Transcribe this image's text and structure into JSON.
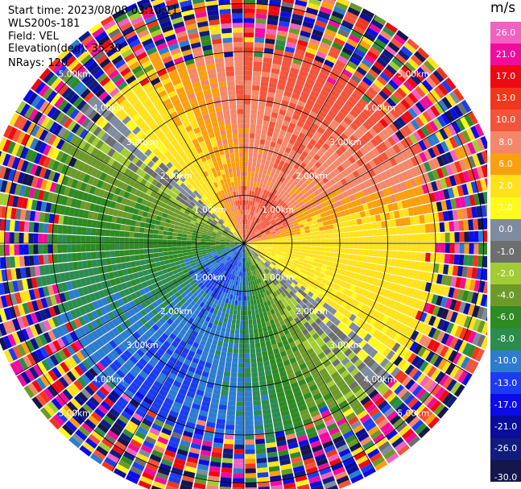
{
  "info": {
    "start_time": "Start time: 2023/08/08 03:10:11",
    "instrument": "WLS200s-181",
    "field": "Field: VEL",
    "elevation": "Elevation(deg): 35.30",
    "nrays": "NRays: 120"
  },
  "colorbar": {
    "unit": "m/s",
    "bins": [
      {
        "label": "26.0",
        "color": "#f062c2"
      },
      {
        "label": "21.0",
        "color": "#f20c9c"
      },
      {
        "label": "17.0",
        "color": "#ee0a12"
      },
      {
        "label": "13.0",
        "color": "#f2361c"
      },
      {
        "label": "10.0",
        "color": "#f4543c"
      },
      {
        "label": "8.0",
        "color": "#f4876a"
      },
      {
        "label": "6.0",
        "color": "#fa9f0e"
      },
      {
        "label": "2.0",
        "color": "#ffe21c"
      },
      {
        "label": "1.0",
        "color": "#fffa1c"
      },
      {
        "label": "0.0",
        "color": "#7f8b9e"
      },
      {
        "label": "-1.0",
        "color": "#6e6e6e"
      },
      {
        "label": "-2.0",
        "color": "#a2cc34"
      },
      {
        "label": "-4.0",
        "color": "#6c9a2a"
      },
      {
        "label": "-6.0",
        "color": "#2e8a22"
      },
      {
        "label": "-8.0",
        "color": "#2c8c50"
      },
      {
        "label": "-10.0",
        "color": "#2c7cd0"
      },
      {
        "label": "-13.0",
        "color": "#1c3cf2"
      },
      {
        "label": "-17.0",
        "color": "#0c0ce8"
      },
      {
        "label": "-21.0",
        "color": "#0a0c9c"
      },
      {
        "label": "-26.0",
        "color": "#101c7e"
      },
      {
        "label": "-30.0",
        "color": "#14164c"
      }
    ]
  },
  "chart_data": {
    "type": "ppi",
    "field": "VEL",
    "units": "m/s",
    "nrays": 120,
    "range_rings_km": [
      1.0,
      2.0,
      3.0,
      4.0,
      5.0
    ],
    "ring_labels": [
      "1.00km",
      "2.00km",
      "3.00km",
      "4.00km",
      "5.00km"
    ],
    "max_range_km": 5.5,
    "spokes_deg": [
      0,
      30,
      60,
      90,
      120,
      150,
      180,
      210,
      240,
      270,
      300,
      330
    ],
    "velocity_pattern": {
      "description_values": "approximate radial velocity by azimuth (deg, clockwise from north) at near range",
      "azimuth_deg": [
        0,
        30,
        60,
        90,
        120,
        150,
        180,
        210,
        240,
        270,
        300,
        330
      ],
      "velocity_ms": [
        7,
        8,
        7,
        3,
        2,
        -2,
        -6,
        -8,
        -6,
        -4,
        -2,
        4
      ]
    },
    "colormap_bounds": [
      30.0,
      26.0,
      21.0,
      17.0,
      13.0,
      10.0,
      8.0,
      6.0,
      2.0,
      1.0,
      0.0,
      -1.0,
      -2.0,
      -4.0,
      -6.0,
      -8.0,
      -10.0,
      -13.0,
      -17.0,
      -21.0,
      -26.0,
      -30.0
    ]
  }
}
